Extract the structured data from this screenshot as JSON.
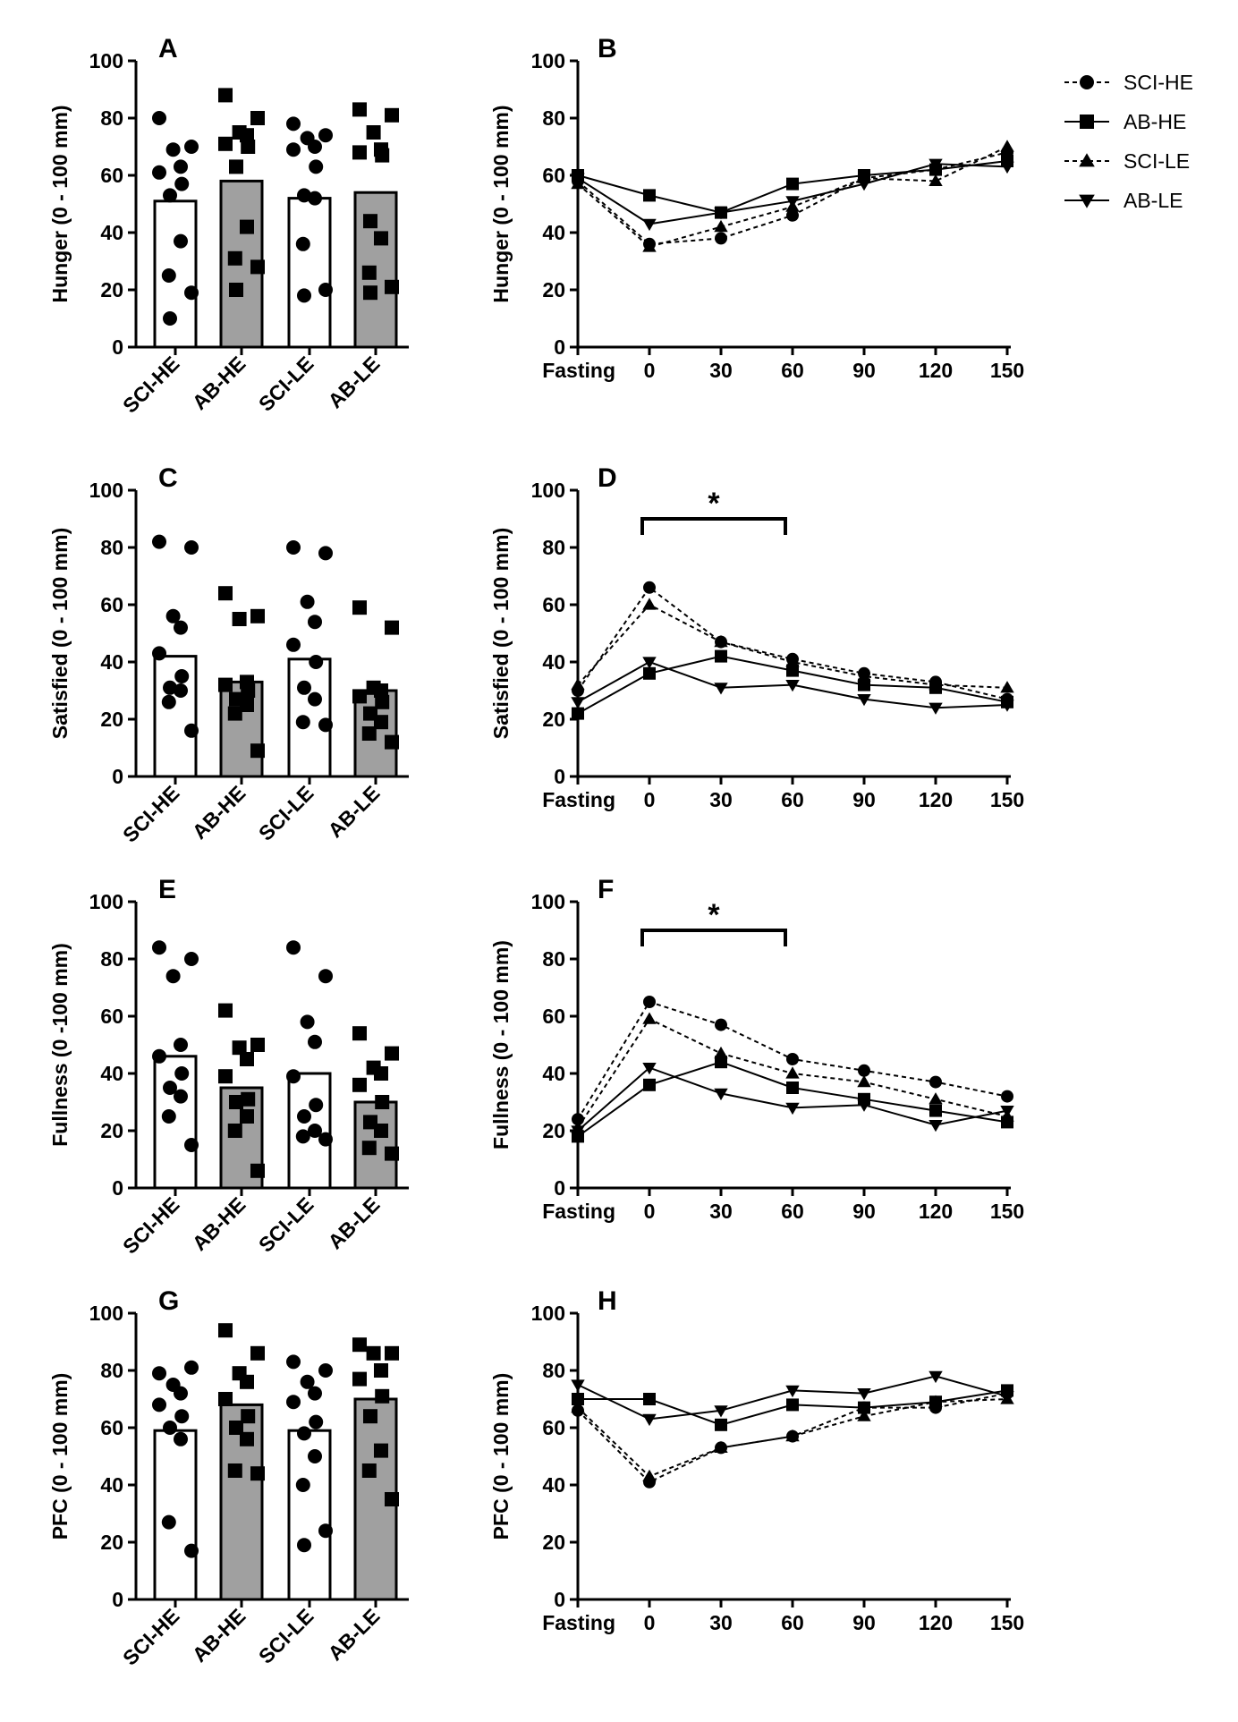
{
  "chart_data": [
    {
      "id": "A",
      "type": "bar",
      "panel_label": "A",
      "ylabel": "Hunger (0 - 100 mm)",
      "ylim": [
        0,
        100
      ],
      "yticks": [
        "0",
        "20",
        "40",
        "60",
        "80",
        "100"
      ],
      "categories": [
        "SCI-HE",
        "AB-HE",
        "SCI-LE",
        "AB-LE"
      ],
      "values": [
        51,
        58,
        52,
        54
      ],
      "bar_colors": [
        "#ffffff",
        "#a0a0a0",
        "#ffffff",
        "#a0a0a0"
      ],
      "points": [
        [
          80,
          70,
          69,
          63,
          61,
          57,
          53,
          37,
          25,
          19,
          10
        ],
        [
          88,
          80,
          75,
          74,
          71,
          70,
          63,
          42,
          31,
          28,
          20
        ],
        [
          78,
          74,
          73,
          70,
          69,
          63,
          53,
          52,
          36,
          20,
          18
        ],
        [
          83,
          81,
          75,
          69,
          68,
          67,
          44,
          38,
          26,
          21,
          19
        ]
      ],
      "markers": [
        "circle",
        "square",
        "circle",
        "square"
      ]
    },
    {
      "id": "B",
      "type": "line",
      "panel_label": "B",
      "ylabel": "Hunger (0 - 100 mm)",
      "ylim": [
        0,
        100
      ],
      "yticks": [
        "0",
        "20",
        "40",
        "60",
        "80",
        "100"
      ],
      "x": [
        "Fasting",
        "0",
        "30",
        "60",
        "90",
        "120",
        "150"
      ],
      "series": [
        {
          "name": "SCI-HE",
          "marker": "circle",
          "dashed": true,
          "values": [
            58,
            36,
            38,
            46,
            59,
            62,
            68
          ]
        },
        {
          "name": "AB-HE",
          "marker": "square",
          "dashed": false,
          "values": [
            60,
            53,
            47,
            57,
            60,
            62,
            65
          ]
        },
        {
          "name": "SCI-LE",
          "marker": "triangle-up",
          "dashed": true,
          "values": [
            57,
            35,
            42,
            49,
            59,
            58,
            70
          ]
        },
        {
          "name": "AB-LE",
          "marker": "triangle-down",
          "dashed": false,
          "values": [
            59,
            43,
            47,
            51,
            57,
            64,
            63
          ]
        }
      ]
    },
    {
      "id": "C",
      "type": "bar",
      "panel_label": "C",
      "ylabel": "Satisfied (0 - 100 mm)",
      "ylim": [
        0,
        100
      ],
      "yticks": [
        "0",
        "20",
        "40",
        "60",
        "80",
        "100"
      ],
      "categories": [
        "SCI-HE",
        "AB-HE",
        "SCI-LE",
        "AB-LE"
      ],
      "values": [
        42,
        33,
        41,
        30
      ],
      "bar_colors": [
        "#ffffff",
        "#a0a0a0",
        "#ffffff",
        "#a0a0a0"
      ],
      "points": [
        [
          82,
          80,
          56,
          52,
          43,
          35,
          31,
          30,
          26,
          16
        ],
        [
          64,
          56,
          55,
          33,
          32,
          30,
          27,
          25,
          22,
          9
        ],
        [
          80,
          78,
          61,
          54,
          46,
          40,
          31,
          27,
          19,
          18
        ],
        [
          59,
          52,
          31,
          30,
          28,
          26,
          22,
          19,
          15,
          12
        ]
      ],
      "markers": [
        "circle",
        "square",
        "circle",
        "square"
      ]
    },
    {
      "id": "D",
      "type": "line",
      "panel_label": "D",
      "ylabel": "Satisfied (0 - 100 mm)",
      "ylim": [
        0,
        100
      ],
      "yticks": [
        "0",
        "20",
        "40",
        "60",
        "80",
        "100"
      ],
      "x": [
        "Fasting",
        "0",
        "30",
        "60",
        "90",
        "120",
        "150"
      ],
      "annotation": {
        "text": "*",
        "from": "0",
        "to": "60"
      },
      "series": [
        {
          "name": "SCI-HE",
          "marker": "circle",
          "dashed": true,
          "values": [
            30,
            66,
            47,
            41,
            36,
            33,
            27
          ]
        },
        {
          "name": "AB-HE",
          "marker": "square",
          "dashed": false,
          "values": [
            22,
            36,
            42,
            37,
            32,
            31,
            26
          ]
        },
        {
          "name": "SCI-LE",
          "marker": "triangle-up",
          "dashed": true,
          "values": [
            32,
            60,
            47,
            40,
            35,
            32,
            31
          ]
        },
        {
          "name": "AB-LE",
          "marker": "triangle-down",
          "dashed": false,
          "values": [
            26,
            40,
            31,
            32,
            27,
            24,
            25
          ]
        }
      ]
    },
    {
      "id": "E",
      "type": "bar",
      "panel_label": "E",
      "ylabel": "Fullness (0 -100 mm)",
      "ylim": [
        0,
        100
      ],
      "yticks": [
        "0",
        "20",
        "40",
        "60",
        "80",
        "100"
      ],
      "categories": [
        "SCI-HE",
        "AB-HE",
        "SCI-LE",
        "AB-LE"
      ],
      "values": [
        46,
        35,
        40,
        30
      ],
      "bar_colors": [
        "#ffffff",
        "#a0a0a0",
        "#ffffff",
        "#a0a0a0"
      ],
      "points": [
        [
          84,
          80,
          74,
          50,
          46,
          40,
          35,
          32,
          25,
          15
        ],
        [
          62,
          50,
          49,
          45,
          39,
          31,
          30,
          25,
          20,
          6
        ],
        [
          84,
          74,
          58,
          51,
          39,
          29,
          25,
          20,
          18,
          17
        ],
        [
          54,
          47,
          42,
          40,
          36,
          30,
          23,
          20,
          14,
          12
        ]
      ],
      "markers": [
        "circle",
        "square",
        "circle",
        "square"
      ]
    },
    {
      "id": "F",
      "type": "line",
      "panel_label": "F",
      "ylabel": "Fullness (0 - 100 mm)",
      "ylim": [
        0,
        100
      ],
      "yticks": [
        "0",
        "20",
        "40",
        "60",
        "80",
        "100"
      ],
      "x": [
        "Fasting",
        "0",
        "30",
        "60",
        "90",
        "120",
        "150"
      ],
      "annotation": {
        "text": "*",
        "from": "0",
        "to": "60"
      },
      "series": [
        {
          "name": "SCI-HE",
          "marker": "circle",
          "dashed": true,
          "values": [
            24,
            65,
            57,
            45,
            41,
            37,
            32
          ]
        },
        {
          "name": "AB-HE",
          "marker": "square",
          "dashed": false,
          "values": [
            18,
            36,
            44,
            35,
            31,
            27,
            23
          ]
        },
        {
          "name": "SCI-LE",
          "marker": "triangle-up",
          "dashed": true,
          "values": [
            21,
            59,
            47,
            40,
            37,
            31,
            25
          ]
        },
        {
          "name": "AB-LE",
          "marker": "triangle-down",
          "dashed": false,
          "values": [
            20,
            42,
            33,
            28,
            29,
            22,
            27
          ]
        }
      ]
    },
    {
      "id": "G",
      "type": "bar",
      "panel_label": "G",
      "ylabel": "PFC (0 - 100 mm)",
      "ylim": [
        0,
        100
      ],
      "yticks": [
        "0",
        "20",
        "40",
        "60",
        "80",
        "100"
      ],
      "categories": [
        "SCI-HE",
        "AB-HE",
        "SCI-LE",
        "AB-LE"
      ],
      "values": [
        59,
        68,
        59,
        70
      ],
      "bar_colors": [
        "#ffffff",
        "#a0a0a0",
        "#ffffff",
        "#a0a0a0"
      ],
      "points": [
        [
          79,
          81,
          75,
          72,
          68,
          64,
          60,
          56,
          27,
          17
        ],
        [
          94,
          86,
          79,
          76,
          70,
          64,
          60,
          56,
          45,
          44
        ],
        [
          83,
          80,
          76,
          72,
          69,
          62,
          58,
          50,
          40,
          24,
          19
        ],
        [
          89,
          86,
          86,
          80,
          77,
          71,
          64,
          52,
          45,
          35
        ]
      ],
      "markers": [
        "circle",
        "square",
        "circle",
        "square"
      ]
    },
    {
      "id": "H",
      "type": "line",
      "panel_label": "H",
      "ylabel": "PFC (0 - 100 mm)",
      "ylim": [
        0,
        100
      ],
      "yticks": [
        "0",
        "20",
        "40",
        "60",
        "80",
        "100"
      ],
      "x": [
        "Fasting",
        "0",
        "30",
        "60",
        "90",
        "120",
        "150"
      ],
      "series": [
        {
          "name": "SCI-HE",
          "marker": "circle",
          "dashed": true,
          "values": [
            66,
            41,
            53,
            57,
            67,
            67,
            72
          ]
        },
        {
          "name": "AB-HE",
          "marker": "square",
          "dashed": false,
          "values": [
            70,
            70,
            61,
            68,
            67,
            69,
            73
          ]
        },
        {
          "name": "SCI-LE",
          "marker": "triangle-up",
          "dashed": true,
          "values": [
            67,
            43,
            53,
            57,
            64,
            69,
            70
          ]
        },
        {
          "name": "AB-LE",
          "marker": "triangle-down",
          "dashed": false,
          "values": [
            75,
            63,
            66,
            73,
            72,
            78,
            71
          ]
        }
      ]
    }
  ],
  "legend": {
    "placement": "top-right",
    "items": [
      {
        "label": "SCI-HE",
        "marker": "circle",
        "dashed": true
      },
      {
        "label": "AB-HE",
        "marker": "square",
        "dashed": false
      },
      {
        "label": "SCI-LE",
        "marker": "triangle-up",
        "dashed": true
      },
      {
        "label": "AB-LE",
        "marker": "triangle-down",
        "dashed": false
      }
    ]
  }
}
